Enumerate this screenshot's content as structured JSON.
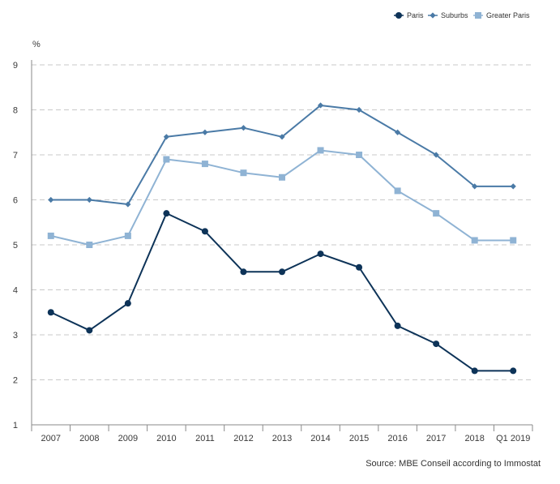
{
  "chart_data": {
    "type": "line",
    "title": "",
    "xlabel": "",
    "ylabel": "%",
    "ylim": [
      1,
      9
    ],
    "yticks": [
      1,
      2,
      3,
      4,
      5,
      6,
      7,
      8,
      9
    ],
    "grid": true,
    "legend_position": "top-right",
    "categories": [
      "2007",
      "2008",
      "2009",
      "2010",
      "2011",
      "2012",
      "2013",
      "2014",
      "2015",
      "2016",
      "2017",
      "2018",
      "Q1 2019"
    ],
    "series": [
      {
        "name": "Paris",
        "color": "#0d3358",
        "marker": "circle",
        "values": [
          3.5,
          3.1,
          3.7,
          5.7,
          5.3,
          4.4,
          4.4,
          4.8,
          4.5,
          3.2,
          2.8,
          2.2,
          2.2
        ]
      },
      {
        "name": "Suburbs",
        "color": "#4a7aa6",
        "marker": "diamond",
        "values": [
          6.0,
          6.0,
          5.9,
          7.4,
          7.5,
          7.6,
          7.4,
          8.1,
          8.0,
          7.5,
          7.0,
          6.3,
          6.3
        ]
      },
      {
        "name": "Greater Paris",
        "color": "#8fb3d4",
        "marker": "square",
        "values": [
          5.2,
          5.0,
          5.2,
          6.9,
          6.8,
          6.6,
          6.5,
          7.1,
          7.0,
          6.2,
          5.7,
          5.1,
          5.1
        ]
      }
    ],
    "source": "Source: MBE Conseil according to Immostat"
  }
}
